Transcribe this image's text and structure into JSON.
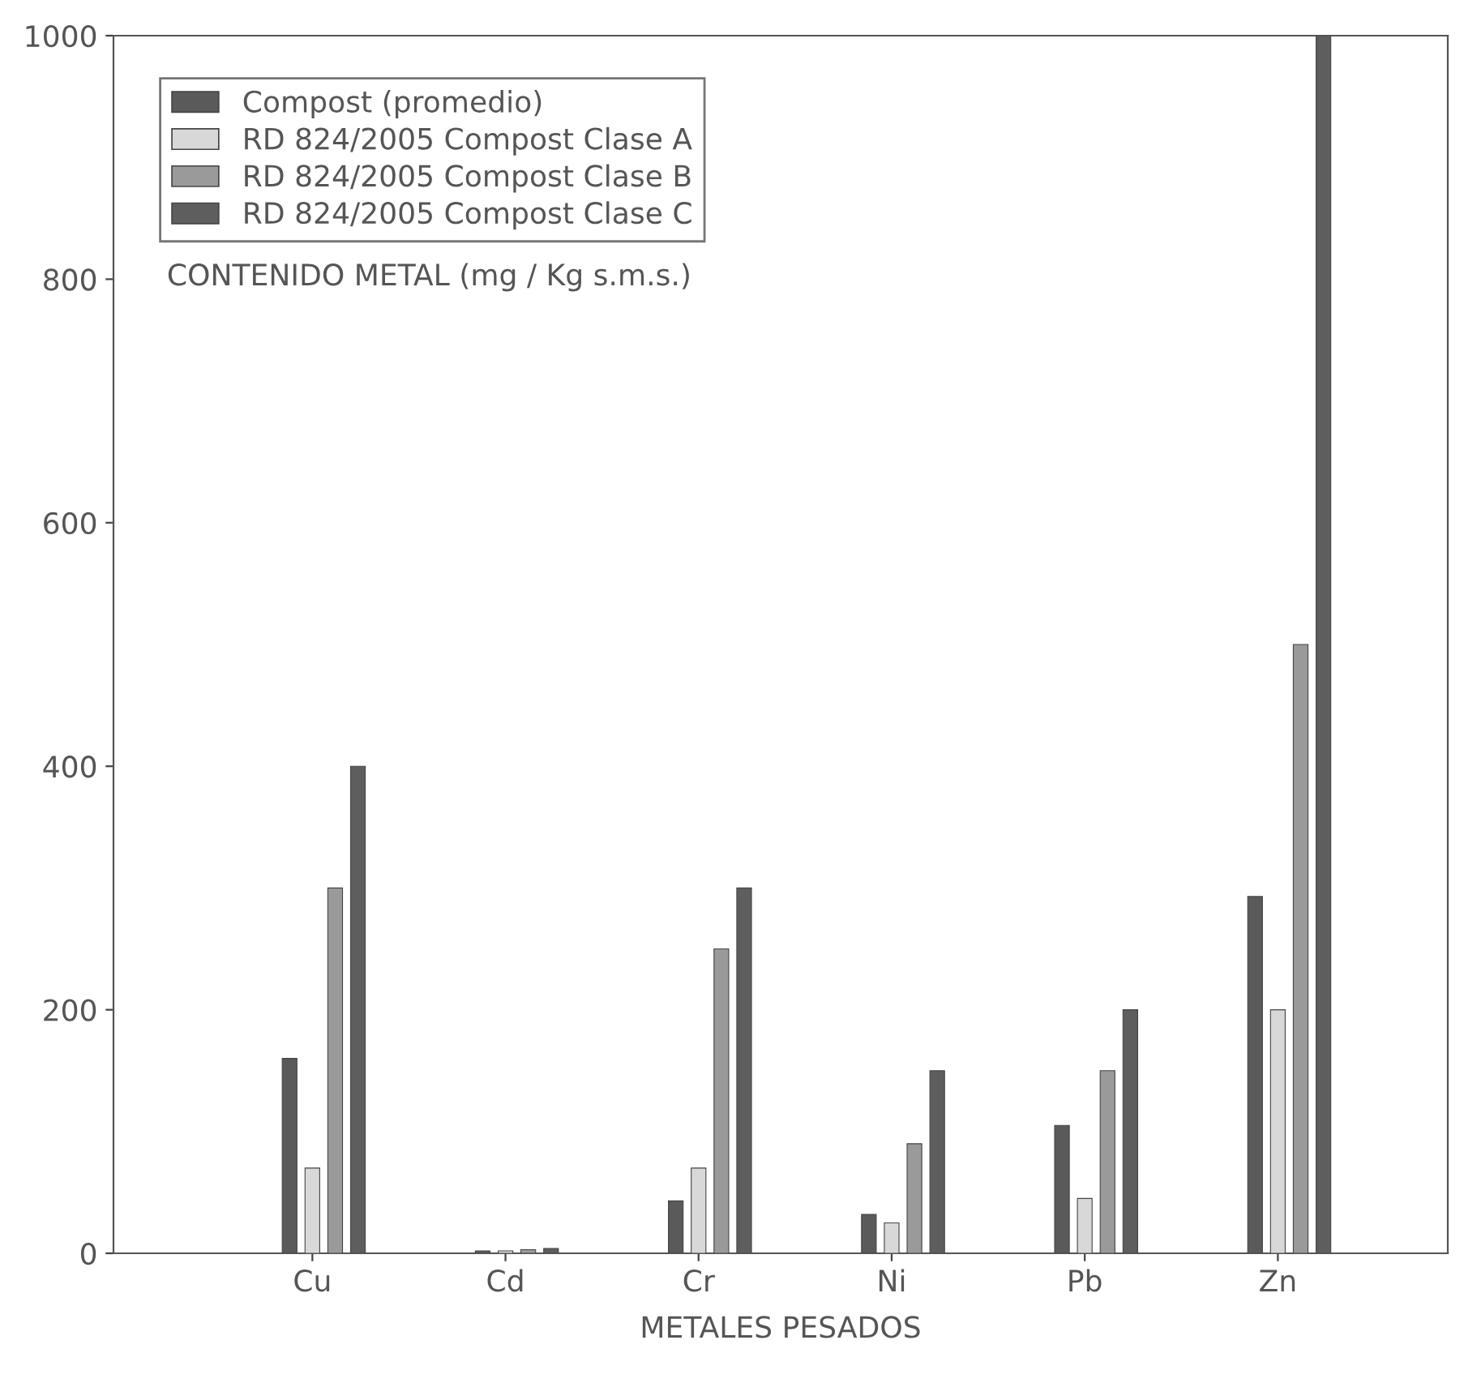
{
  "chart_data": {
    "type": "bar",
    "xlabel": "METALES PESADOS",
    "ylabel": "CONTENIDO METAL (mg / Kg s.m.s.)",
    "categories": [
      "Cu",
      "Cd",
      "Cr",
      "Ni",
      "Pb",
      "Zn"
    ],
    "series": [
      {
        "name": "Compost (promedio)",
        "color": "#5a5a5a",
        "values": [
          160,
          2,
          43,
          32,
          105,
          293
        ]
      },
      {
        "name": "RD 824/2005 Compost Clase A",
        "color": "#d8d8d8",
        "values": [
          70,
          2,
          70,
          25,
          45,
          200
        ]
      },
      {
        "name": "RD 824/2005 Compost Clase B",
        "color": "#9a9a9a",
        "values": [
          300,
          3,
          250,
          90,
          150,
          500
        ]
      },
      {
        "name": "RD 824/2005 Compost Clase C",
        "color": "#5e5e5e",
        "values": [
          400,
          4,
          300,
          150,
          200,
          1000
        ]
      }
    ],
    "ylim": [
      0,
      1000
    ],
    "yticks": [
      0,
      200,
      400,
      600,
      800,
      1000
    ],
    "grid": false,
    "legend": "top left"
  }
}
